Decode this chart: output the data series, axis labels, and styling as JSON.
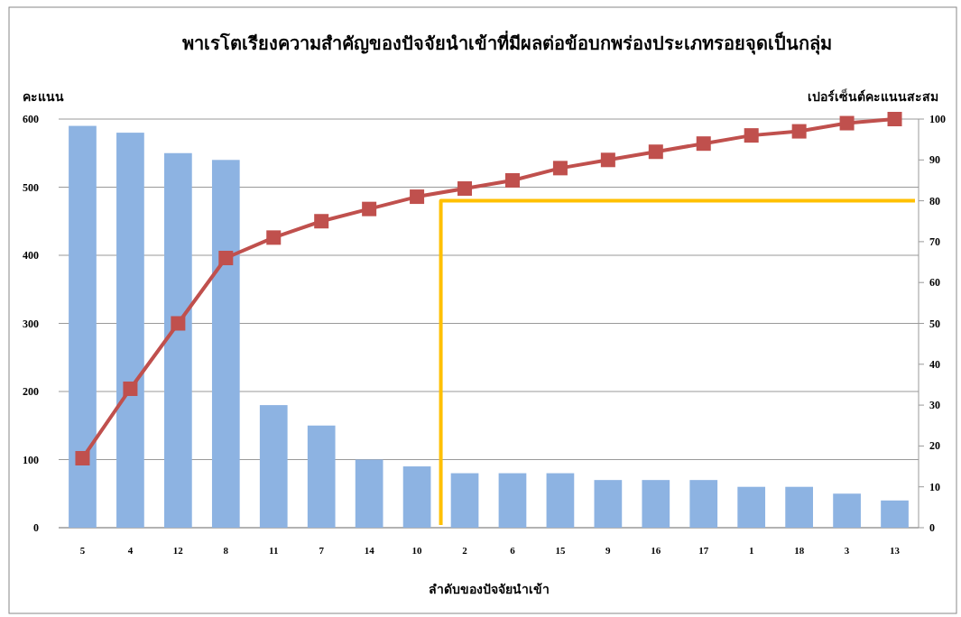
{
  "chart_data": {
    "type": "bar",
    "title": "พาเรโตเรียงความสำคัญของปัจจัยนำเข้าที่มีผลต่อข้อบกพร่องประเภทรอยจุดเป็นกลุ่ม",
    "xlabel": "ลำดับของปัจจัยนำเข้า",
    "ylabel": "คะแนน",
    "y2label": "เปอร์เซ็นต์คะแนนสะสม",
    "categories": [
      "5",
      "4",
      "12",
      "8",
      "11",
      "7",
      "14",
      "10",
      "2",
      "6",
      "15",
      "9",
      "16",
      "17",
      "1",
      "18",
      "3",
      "13"
    ],
    "series": [
      {
        "color": "#8db3e2",
        "values": [
          590,
          580,
          550,
          540,
          180,
          150,
          100,
          90,
          80,
          80,
          80,
          70,
          70,
          70,
          60,
          60,
          50,
          40
        ]
      },
      {
        "type": "line",
        "axis": "y2",
        "color": "#c0504d",
        "marker": "square",
        "values": [
          17,
          34,
          50,
          66,
          71,
          75,
          78,
          81,
          83,
          85,
          88,
          90,
          92,
          94,
          96,
          97,
          99,
          100
        ]
      }
    ],
    "ref_lines": [
      {
        "axis": "y2",
        "value": 80,
        "color": "#ffc000"
      }
    ],
    "ylim": [
      0,
      600
    ],
    "yticks": [
      0,
      100,
      200,
      300,
      400,
      500,
      600
    ],
    "y2lim": [
      0,
      100
    ],
    "y2ticks": [
      0,
      10,
      20,
      30,
      40,
      50,
      60,
      70,
      80,
      90,
      100
    ],
    "grid": "y"
  }
}
